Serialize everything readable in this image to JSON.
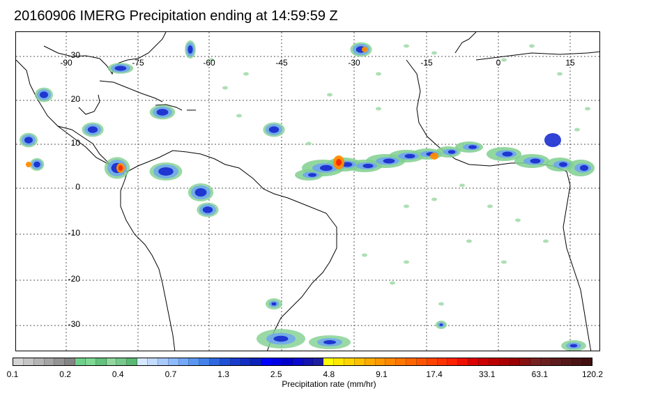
{
  "title": "20160906 IMERG Precipitation ending at 14:59:59 Z",
  "map": {
    "lat_labels": [
      "30",
      "20",
      "10",
      "0",
      "-10",
      "-20",
      "-30"
    ],
    "lon_labels": [
      "-90",
      "-75",
      "-60",
      "-45",
      "-30",
      "-15",
      "0",
      "15"
    ],
    "land_outline_color": "#000000",
    "grid_color": "#555555"
  },
  "colorbar": {
    "title": "Precipitation rate (mm/hr)",
    "tick_labels": [
      "0.1",
      "0.2",
      "0.4",
      "0.7",
      "1.3",
      "2.5",
      "4.8",
      "9.1",
      "17.4",
      "33.1",
      "63.1",
      "120.2"
    ],
    "colors": [
      "#d4d4d4",
      "#c4c4c4",
      "#b4b4b4",
      "#a4a4a4",
      "#949494",
      "#848484",
      "#6fd08c",
      "#7fd893",
      "#63c27c",
      "#8fd79d",
      "#76c98a",
      "#5ab873",
      "#d6e8ff",
      "#c2dbff",
      "#a8cbff",
      "#8cbaff",
      "#73a8fb",
      "#5b96f2",
      "#4582ea",
      "#3068e0",
      "#2050d6",
      "#1a3ccd",
      "#122ec4",
      "#0b22bb",
      "#0000ff",
      "#0000e6",
      "#0000cc",
      "#0a0acf",
      "#1414b0",
      "#1e1ea0",
      "#ffff00",
      "#ffe800",
      "#ffd400",
      "#ffc000",
      "#ffaa00",
      "#ff9900",
      "#ff8800",
      "#ff7700",
      "#ff6600",
      "#ff5500",
      "#ff4400",
      "#ff3300",
      "#ff2200",
      "#ee1100",
      "#dd0000",
      "#cc0000",
      "#bb0000",
      "#aa0000",
      "#990000",
      "#881111",
      "#772222",
      "#6b1f1f",
      "#5e1c1c",
      "#541818",
      "#4b1414",
      "#421010"
    ]
  },
  "precip_colors": {
    "light": "#7fcf8f",
    "light2": "#9fd9a8",
    "moderate": "#6fa4f0",
    "heavy": "#1a2fd0",
    "intense": "#ff8c00",
    "extreme": "#ff2a00"
  }
}
